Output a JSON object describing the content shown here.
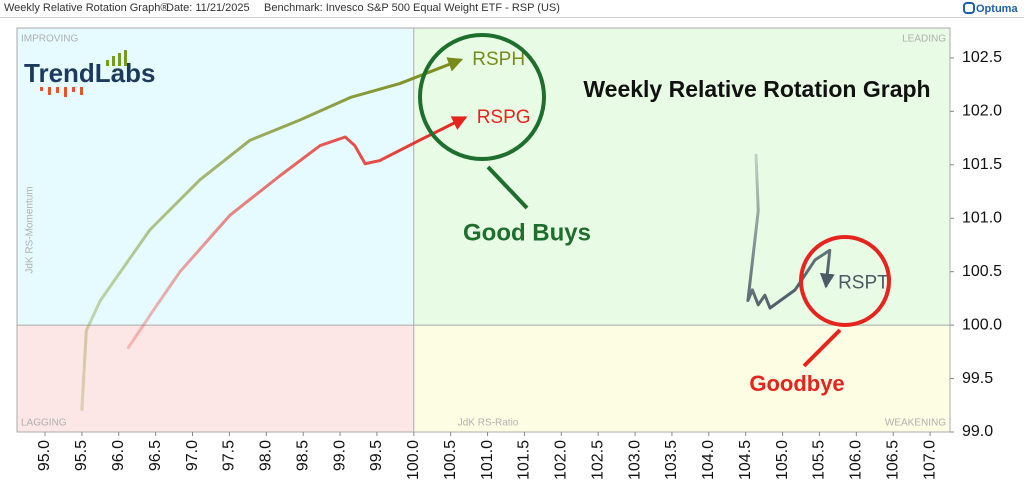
{
  "header": {
    "title": "Weekly Relative Rotation Graph®",
    "date": "Date: 11/21/2025",
    "benchmark": "Benchmark: Invesco S&P 500 Equal Weight ETF - RSP (US)",
    "brand": "Optuma"
  },
  "chart_data": {
    "type": "rotation",
    "title": "Weekly Relative Rotation Graph",
    "logo": "TrendLabs",
    "xlabel": "JdK RS-Ratio",
    "ylabel": "JdK RS-Momentum",
    "quadrants": {
      "improving": "IMPROVING",
      "leading": "LEADING",
      "lagging": "LAGGING",
      "weakening": "WEAKENING"
    },
    "annotations": [
      "Good Buys",
      "Goodbye"
    ],
    "xlim": [
      94.62,
      107.27
    ],
    "ylim": [
      99.0,
      102.78
    ],
    "center": [
      100,
      100
    ],
    "xticks": [
      {
        "value": 95,
        "label": "95.0"
      },
      95.5,
      {
        "value": 96,
        "label": "96.0"
      },
      96.5,
      {
        "value": 97,
        "label": "97.0"
      },
      97.5,
      {
        "value": 98,
        "label": "98.0"
      },
      98.5,
      {
        "value": 99,
        "label": "99.0"
      },
      99.5,
      {
        "value": 100,
        "label": "100.0"
      },
      100.5,
      {
        "value": 101,
        "label": "101.0"
      },
      101.5,
      {
        "value": 102,
        "label": "102.0"
      },
      102.5,
      {
        "value": 103,
        "label": "103.0"
      },
      103.5,
      {
        "value": 104,
        "label": "104.0"
      },
      104.5,
      {
        "value": 105,
        "label": "105.0"
      },
      105.5,
      {
        "value": 106,
        "label": "106.0"
      },
      106.5,
      {
        "value": 107,
        "label": "107.0"
      }
    ],
    "yticks": [
      {
        "value": 99,
        "label": "99.0"
      },
      99.5,
      {
        "value": 100,
        "label": "100.0"
      },
      100.5,
      {
        "value": 101,
        "label": "101.0"
      },
      101.5,
      {
        "value": 102,
        "label": "102.0"
      },
      102.5
    ],
    "series": [
      {
        "name": "RSPH",
        "color": "#7a8a1a",
        "x": [
          95.5,
          95.56,
          95.75,
          96.42,
          97.1,
          97.78,
          98.46,
          99.14,
          99.81,
          100.63
        ],
        "values": [
          99.21,
          99.95,
          100.23,
          100.89,
          101.36,
          101.73,
          101.92,
          102.13,
          102.26,
          102.48
        ]
      },
      {
        "name": "RSPG",
        "color": "#e5241e",
        "x": [
          96.13,
          96.49,
          96.83,
          97.51,
          98.19,
          98.73,
          99.07,
          99.2,
          99.34,
          99.54,
          100.08,
          100.69
        ],
        "values": [
          99.79,
          100.16,
          100.5,
          101.03,
          101.4,
          101.68,
          101.76,
          101.68,
          101.51,
          101.54,
          101.73,
          101.94
        ]
      },
      {
        "name": "RSPT",
        "color": "#4a5a66",
        "x": [
          104.64,
          104.67,
          104.53,
          104.59,
          104.67,
          104.76,
          104.83,
          105.17,
          105.44,
          105.64,
          105.59
        ],
        "values": [
          101.59,
          101.07,
          100.23,
          100.33,
          100.19,
          100.28,
          100.16,
          100.33,
          100.61,
          100.7,
          100.37
        ]
      }
    ]
  }
}
